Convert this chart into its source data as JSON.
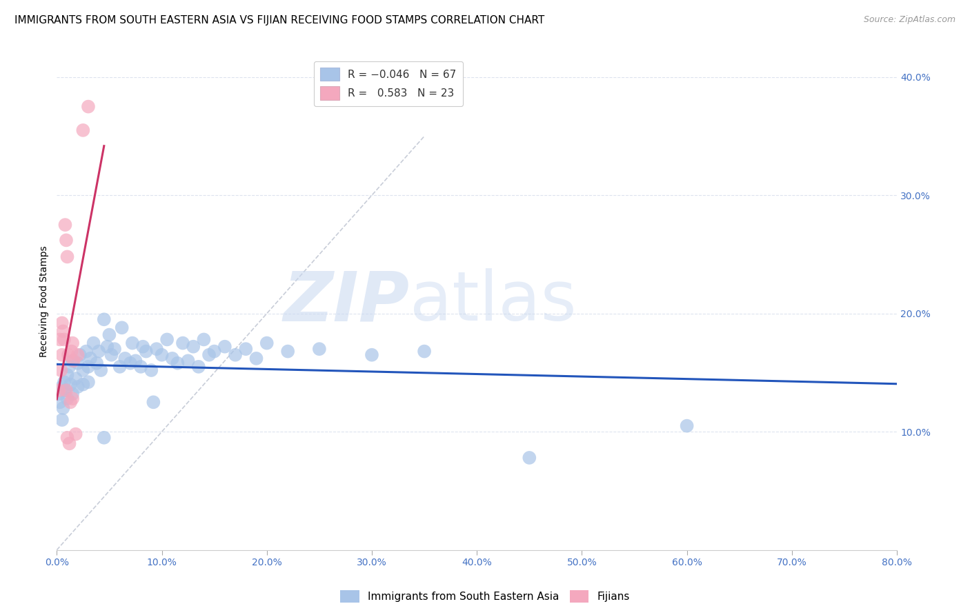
{
  "title": "IMMIGRANTS FROM SOUTH EASTERN ASIA VS FIJIAN RECEIVING FOOD STAMPS CORRELATION CHART",
  "source": "Source: ZipAtlas.com",
  "ylabel": "Receiving Food Stamps",
  "legend_label1": "Immigrants from South Eastern Asia",
  "legend_label2": "Fijians",
  "R1": -0.046,
  "N1": 67,
  "R2": 0.583,
  "N2": 23,
  "color1": "#a8c4e8",
  "color2": "#f4a8be",
  "trendline1_color": "#2255bb",
  "trendline2_color": "#cc3366",
  "refline_color": "#c8cdd8",
  "xlim": [
    0,
    80
  ],
  "ylim": [
    0,
    42
  ],
  "xtick_vals": [
    0,
    10,
    20,
    30,
    40,
    50,
    60,
    70,
    80
  ],
  "xtick_labels": [
    "0.0%",
    "10.0%",
    "20.0%",
    "30.0%",
    "40.0%",
    "50.0%",
    "60.0%",
    "70.0%",
    "80.0%"
  ],
  "yticks_right": [
    10,
    20,
    30,
    40
  ],
  "ytick_labels_right": [
    "10.0%",
    "20.0%",
    "30.0%",
    "40.0%"
  ],
  "watermark_zip": "ZIP",
  "watermark_atlas": "atlas",
  "blue_scatter": [
    [
      0.2,
      13.2
    ],
    [
      0.3,
      12.5
    ],
    [
      0.5,
      11.0
    ],
    [
      0.5,
      13.8
    ],
    [
      0.6,
      12.0
    ],
    [
      0.7,
      14.2
    ],
    [
      0.8,
      13.5
    ],
    [
      1.0,
      14.8
    ],
    [
      1.0,
      12.8
    ],
    [
      1.2,
      15.5
    ],
    [
      1.3,
      14.0
    ],
    [
      1.5,
      13.2
    ],
    [
      1.5,
      16.0
    ],
    [
      1.8,
      14.5
    ],
    [
      2.0,
      15.8
    ],
    [
      2.0,
      13.8
    ],
    [
      2.2,
      16.5
    ],
    [
      2.5,
      15.2
    ],
    [
      2.5,
      14.0
    ],
    [
      2.8,
      16.8
    ],
    [
      3.0,
      15.5
    ],
    [
      3.0,
      14.2
    ],
    [
      3.2,
      16.2
    ],
    [
      3.5,
      17.5
    ],
    [
      3.8,
      15.8
    ],
    [
      4.0,
      16.8
    ],
    [
      4.2,
      15.2
    ],
    [
      4.5,
      19.5
    ],
    [
      4.8,
      17.2
    ],
    [
      5.0,
      18.2
    ],
    [
      5.2,
      16.5
    ],
    [
      5.5,
      17.0
    ],
    [
      6.0,
      15.5
    ],
    [
      6.2,
      18.8
    ],
    [
      6.5,
      16.2
    ],
    [
      7.0,
      15.8
    ],
    [
      7.2,
      17.5
    ],
    [
      7.5,
      16.0
    ],
    [
      8.0,
      15.5
    ],
    [
      8.2,
      17.2
    ],
    [
      8.5,
      16.8
    ],
    [
      9.0,
      15.2
    ],
    [
      9.2,
      12.5
    ],
    [
      9.5,
      17.0
    ],
    [
      10.0,
      16.5
    ],
    [
      10.5,
      17.8
    ],
    [
      11.0,
      16.2
    ],
    [
      11.5,
      15.8
    ],
    [
      12.0,
      17.5
    ],
    [
      12.5,
      16.0
    ],
    [
      13.0,
      17.2
    ],
    [
      13.5,
      15.5
    ],
    [
      14.0,
      17.8
    ],
    [
      14.5,
      16.5
    ],
    [
      15.0,
      16.8
    ],
    [
      16.0,
      17.2
    ],
    [
      17.0,
      16.5
    ],
    [
      18.0,
      17.0
    ],
    [
      19.0,
      16.2
    ],
    [
      20.0,
      17.5
    ],
    [
      22.0,
      16.8
    ],
    [
      25.0,
      17.0
    ],
    [
      30.0,
      16.5
    ],
    [
      35.0,
      16.8
    ],
    [
      45.0,
      7.8
    ],
    [
      60.0,
      10.5
    ],
    [
      4.5,
      9.5
    ]
  ],
  "pink_scatter": [
    [
      0.2,
      13.5
    ],
    [
      0.3,
      17.8
    ],
    [
      0.4,
      15.2
    ],
    [
      0.5,
      16.5
    ],
    [
      0.5,
      19.2
    ],
    [
      0.6,
      18.5
    ],
    [
      0.7,
      17.8
    ],
    [
      0.8,
      27.5
    ],
    [
      0.9,
      26.2
    ],
    [
      0.9,
      13.5
    ],
    [
      1.0,
      24.8
    ],
    [
      1.0,
      9.5
    ],
    [
      1.1,
      16.5
    ],
    [
      1.2,
      9.0
    ],
    [
      1.3,
      12.5
    ],
    [
      1.4,
      16.8
    ],
    [
      1.5,
      17.5
    ],
    [
      1.5,
      12.8
    ],
    [
      1.6,
      16.0
    ],
    [
      1.8,
      9.8
    ],
    [
      2.0,
      16.5
    ],
    [
      2.5,
      35.5
    ],
    [
      3.0,
      37.5
    ]
  ],
  "title_fontsize": 11,
  "axis_label_fontsize": 10,
  "tick_fontsize": 10,
  "tick_color": "#4472c4",
  "grid_color": "#dde3ee",
  "background_color": "#ffffff"
}
